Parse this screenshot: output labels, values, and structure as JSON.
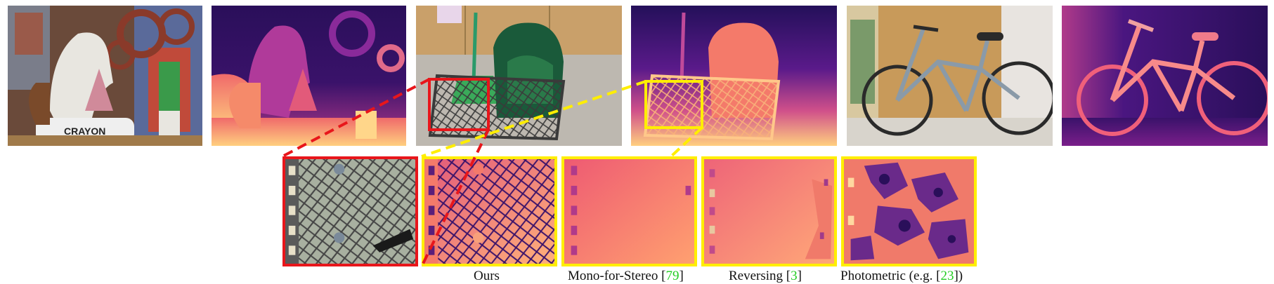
{
  "figure": {
    "captions": [
      {
        "label": "Ours",
        "cite": null
      },
      {
        "label": "Mono-for-Stereo [",
        "cite": "79",
        "suffix": "]"
      },
      {
        "label": "Reversing  [",
        "cite": "3",
        "suffix": "]"
      },
      {
        "label": "Photometric  (e.g. [",
        "cite": "23",
        "suffix": "])"
      }
    ],
    "colors": {
      "cite": "#22cc22",
      "red_frame": "#e8161b",
      "yellow_frame": "#ffee00",
      "depth_near": "#ffd27f",
      "depth_mid": "#f06a6a",
      "depth_far": "#2a0f5a"
    },
    "craft_label": "CRAYON"
  }
}
